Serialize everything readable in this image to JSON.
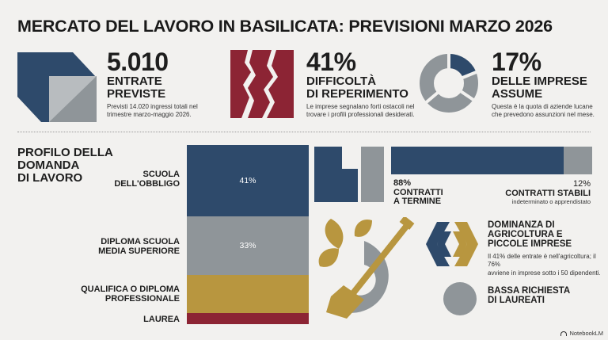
{
  "title": "MERCATO DEL LAVORO IN BASILICATA: PREVISIONI MARZO 2026",
  "colors": {
    "navy": "#2e4a6b",
    "gray": "#8f9599",
    "crimson": "#8c2434",
    "gold": "#b8963f",
    "bg": "#f2f1ef"
  },
  "stats": [
    {
      "value": "5.010",
      "caption_line1": "ENTRATE",
      "caption_line2": "PREVISTE",
      "desc_line1": "Previsti 14.020 ingressi totali nel",
      "desc_line2": "trimestre marzo-maggio 2026.",
      "icon": "folded-square-icon"
    },
    {
      "value": "41%",
      "caption_line1": "DIFFICOLTÀ",
      "caption_line2": "DI REPERIMENTO",
      "desc_line1": "Le imprese segnalano forti ostacoli nel",
      "desc_line2": "trovare i profili professionali desiderati.",
      "icon": "broken-bars-icon"
    },
    {
      "value": "17%",
      "caption_line1": "DELLE IMPRESE",
      "caption_line2": "ASSUME",
      "desc_line1": "Questa è la quota di aziende lucane",
      "desc_line2": "che prevedono assunzioni nel mese.",
      "icon": "donut-segment-icon"
    }
  ],
  "profile": {
    "title_line1": "PROFILO DELLA",
    "title_line2": "DOMANDA",
    "title_line3": "DI LAVORO",
    "rows": [
      {
        "label_line1": "SCUOLA",
        "label_line2": "DELL'OBBLIGO",
        "pct": "41%",
        "share": 41
      },
      {
        "label_line1": "DIPLOMA SCUOLA",
        "label_line2": "MEDIA SUPERIORE",
        "pct": "33%",
        "share": 33
      },
      {
        "label_line1": "QUALIFICA O DIPLOMA",
        "label_line2": "PROFESSIONALE",
        "pct": "",
        "share": 18
      },
      {
        "label_line1": "LAUREA",
        "label_line2": "",
        "pct": "",
        "share": 8
      }
    ]
  },
  "contracts": {
    "term_pct": "88%",
    "term_label_line1": "CONTRATTI",
    "term_label_line2": "A TERMINE",
    "term_share": 88,
    "stable_pct": "12%",
    "stable_label": "CONTRATTI STABILI",
    "stable_sub": "indeterminato o apprendistato",
    "stable_share": 12
  },
  "agri": {
    "title_line1": "DOMINANZA DI",
    "title_line2": "AGRICOLTURA E",
    "title_line3": "PICCOLE IMPRESE",
    "desc_line1": "Il 41% delle entrate è nell'agricoltura; il 76%",
    "desc_line2": "avviene in imprese sotto i 50 dipendenti."
  },
  "grads": {
    "title_line1": "BASSA RICHIESTA",
    "title_line2": "DI LAUREATI"
  },
  "branding": "NotebookLM"
}
